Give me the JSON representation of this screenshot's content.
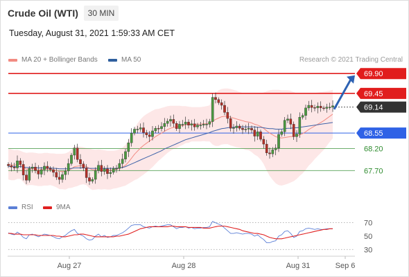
{
  "header": {
    "instrument": "Crude Oil (WTI)",
    "timeframe": "30 MIN",
    "timestamp": "Tuesday, August 31, 2021 1:59:33 AM CET"
  },
  "legend": {
    "ma20": {
      "label": "MA 20 + Bollinger Bands",
      "color": "#f28b82"
    },
    "ma50": {
      "label": "MA 50",
      "color": "#2f5f9e"
    },
    "copyright": "Research © 2021 Trading Central",
    "rsi": {
      "label": "RSI",
      "color": "#5b7fd6"
    },
    "ma9": {
      "label": "9MA",
      "color": "#e02020"
    }
  },
  "chart_data": {
    "type": "candlestick",
    "price_axis": {
      "ylim": [
        67.14,
        70.06
      ]
    },
    "x_axis_labels": [
      "Aug 27",
      "Aug 28",
      "Aug 31",
      "Sep 6"
    ],
    "levels": [
      {
        "label": "69.90",
        "value": 69.9,
        "kind": "resistance",
        "color": "#e11d1d"
      },
      {
        "label": "69.45",
        "value": 69.45,
        "kind": "resistance",
        "color": "#e11d1d"
      },
      {
        "label": "69.14",
        "value": 69.14,
        "kind": "last",
        "color": "#333333"
      },
      {
        "label": "68.55",
        "value": 68.55,
        "kind": "pivot",
        "color": "#2f62e6"
      },
      {
        "label": "68.20",
        "value": 68.2,
        "kind": "support",
        "color": "#2e8b2e"
      },
      {
        "label": "67.70",
        "value": 67.7,
        "kind": "support",
        "color": "#2e8b2e"
      }
    ],
    "forecast_arrow": {
      "from": 69.09,
      "to": 69.86,
      "color": "#2d62b3"
    },
    "closes": [
      67.81,
      67.78,
      67.76,
      67.92,
      67.84,
      67.6,
      67.48,
      67.75,
      67.78,
      67.7,
      67.62,
      67.72,
      67.8,
      67.75,
      67.72,
      67.66,
      67.55,
      67.5,
      67.61,
      67.69,
      67.86,
      68.05,
      68.21,
      67.95,
      67.85,
      67.76,
      67.54,
      67.46,
      67.5,
      67.7,
      67.82,
      67.68,
      67.74,
      67.63,
      67.66,
      67.75,
      67.75,
      67.86,
      67.96,
      68.13,
      68.33,
      68.55,
      68.64,
      68.64,
      68.67,
      68.56,
      68.51,
      68.47,
      68.6,
      68.66,
      68.65,
      68.7,
      68.77,
      68.82,
      68.86,
      68.77,
      68.65,
      68.75,
      68.75,
      68.8,
      68.73,
      68.76,
      68.69,
      68.73,
      68.73,
      68.75,
      68.75,
      68.81,
      69.36,
      69.31,
      69.24,
      69.18,
      69.02,
      68.88,
      68.66,
      68.67,
      68.71,
      68.66,
      68.63,
      68.64,
      68.66,
      68.62,
      68.48,
      68.58,
      68.41,
      68.3,
      68.1,
      68.08,
      68.17,
      68.21,
      68.52,
      68.58,
      68.84,
      68.87,
      68.75,
      68.47,
      68.53,
      68.91,
      68.95,
      69.12,
      69.18,
      69.13,
      69.12,
      69.16,
      69.12,
      69.11,
      69.14,
      69.14,
      69.17
    ],
    "ma20": [
      67.85,
      67.83,
      67.82,
      67.84,
      67.83,
      67.78,
      67.73,
      67.74,
      67.74,
      67.73,
      67.72,
      67.72,
      67.73,
      67.73,
      67.73,
      67.72,
      67.7,
      67.68,
      67.68,
      67.68,
      67.71,
      67.74,
      67.79,
      67.8,
      67.81,
      67.81,
      67.79,
      67.75,
      67.72,
      67.72,
      67.73,
      67.72,
      67.72,
      67.71,
      67.71,
      67.72,
      67.73,
      67.75,
      67.78,
      67.82,
      67.89,
      67.98,
      68.07,
      68.14,
      68.21,
      68.27,
      68.32,
      68.37,
      68.42,
      68.47,
      68.51,
      68.55,
      68.59,
      68.63,
      68.66,
      68.68,
      68.69,
      68.71,
      68.72,
      68.74,
      68.74,
      68.75,
      68.75,
      68.75,
      68.75,
      68.76,
      68.76,
      68.77,
      68.82,
      68.86,
      68.89,
      68.92,
      68.93,
      68.93,
      68.91,
      68.89,
      68.87,
      68.85,
      68.83,
      68.81,
      68.8,
      68.78,
      68.75,
      68.73,
      68.7,
      68.66,
      68.6,
      68.55,
      68.51,
      68.47,
      68.45,
      68.44,
      68.45,
      68.46,
      68.47,
      68.47,
      68.48,
      68.51,
      68.54,
      68.58,
      68.63,
      68.67,
      68.71,
      68.75,
      68.79,
      68.83,
      68.88,
      68.93,
      68.98
    ],
    "ma50": [
      67.8,
      67.79,
      67.79,
      67.79,
      67.79,
      67.78,
      67.77,
      67.77,
      67.77,
      67.77,
      67.76,
      67.76,
      67.76,
      67.76,
      67.76,
      67.75,
      67.75,
      67.74,
      67.74,
      67.74,
      67.74,
      67.75,
      67.76,
      67.76,
      67.76,
      67.76,
      67.76,
      67.75,
      67.75,
      67.75,
      67.75,
      67.75,
      67.75,
      67.75,
      67.75,
      67.75,
      67.75,
      67.76,
      67.77,
      67.79,
      67.82,
      67.85,
      67.88,
      67.91,
      67.94,
      67.97,
      68.0,
      68.03,
      68.06,
      68.09,
      68.12,
      68.15,
      68.19,
      68.22,
      68.25,
      68.28,
      68.31,
      68.34,
      68.37,
      68.4,
      68.42,
      68.44,
      68.46,
      68.48,
      68.5,
      68.52,
      68.54,
      68.56,
      68.59,
      68.61,
      68.63,
      68.65,
      68.66,
      68.67,
      68.68,
      68.68,
      68.69,
      68.69,
      68.69,
      68.69,
      68.69,
      68.69,
      68.69,
      68.68,
      68.68,
      68.67,
      68.66,
      68.65,
      68.65,
      68.64,
      68.64,
      68.64,
      68.65,
      68.66,
      68.66,
      68.67,
      68.67,
      68.68,
      68.69,
      68.7,
      68.71,
      68.72,
      68.73,
      68.74,
      68.75,
      68.76,
      68.77,
      68.78,
      68.79
    ],
    "bollinger_upper": [
      68.2,
      68.18,
      68.16,
      68.17,
      68.15,
      68.12,
      68.1,
      68.11,
      68.11,
      68.1,
      68.09,
      68.09,
      68.1,
      68.1,
      68.09,
      68.09,
      68.08,
      68.08,
      68.08,
      68.09,
      68.12,
      68.17,
      68.25,
      68.25,
      68.24,
      68.23,
      68.21,
      68.2,
      68.18,
      68.17,
      68.18,
      68.17,
      68.16,
      68.15,
      68.15,
      68.15,
      68.16,
      68.18,
      68.22,
      68.28,
      68.38,
      68.52,
      68.66,
      68.77,
      68.86,
      68.93,
      68.98,
      69.02,
      69.06,
      69.09,
      69.1,
      69.12,
      69.14,
      69.16,
      69.17,
      69.17,
      69.17,
      69.17,
      69.16,
      69.16,
      69.15,
      69.14,
      69.14,
      69.14,
      69.14,
      69.15,
      69.16,
      69.18,
      69.35,
      69.46,
      69.52,
      69.55,
      69.56,
      69.56,
      69.55,
      69.53,
      69.51,
      69.48,
      69.46,
      69.45,
      69.44,
      69.44,
      69.44,
      69.44,
      69.45,
      69.47,
      69.5,
      69.52,
      69.53,
      69.53,
      69.53,
      69.52,
      69.52,
      69.52,
      69.51,
      69.48,
      69.45,
      69.44,
      69.44,
      69.44,
      69.45,
      69.46,
      69.46,
      69.47,
      69.48,
      69.49,
      69.5,
      69.51,
      69.53
    ],
    "bollinger_lower": [
      67.5,
      67.48,
      67.48,
      67.51,
      67.51,
      67.44,
      67.36,
      67.37,
      67.37,
      67.36,
      67.35,
      67.35,
      67.36,
      67.36,
      67.37,
      67.35,
      67.32,
      67.28,
      67.28,
      67.27,
      67.3,
      67.31,
      67.33,
      67.35,
      67.38,
      67.39,
      67.37,
      67.3,
      67.26,
      67.27,
      67.28,
      67.27,
      67.28,
      67.27,
      67.27,
      67.29,
      67.3,
      67.32,
      67.34,
      67.36,
      67.4,
      67.44,
      67.48,
      67.51,
      67.56,
      67.61,
      67.66,
      67.72,
      67.78,
      67.85,
      67.92,
      67.98,
      68.04,
      68.1,
      68.15,
      68.19,
      68.21,
      68.25,
      68.28,
      68.32,
      68.33,
      68.36,
      68.36,
      68.36,
      68.36,
      68.37,
      68.36,
      68.36,
      68.29,
      68.26,
      68.26,
      68.29,
      68.3,
      68.3,
      68.27,
      68.25,
      68.23,
      68.22,
      68.2,
      68.17,
      68.16,
      68.12,
      68.06,
      68.02,
      67.95,
      67.85,
      67.7,
      67.58,
      67.49,
      67.41,
      67.37,
      67.36,
      67.38,
      67.4,
      67.43,
      67.46,
      67.51,
      67.58,
      67.64,
      67.72,
      67.81,
      67.88,
      67.96,
      68.03,
      68.1,
      68.17,
      68.26,
      68.35,
      68.43
    ],
    "rsi": {
      "axis_ticks": [
        70,
        50,
        30
      ],
      "ylim": [
        22,
        80
      ],
      "values": [
        55,
        53,
        52,
        56,
        53,
        48,
        46,
        52,
        53,
        51,
        49,
        51,
        53,
        52,
        51,
        49,
        47,
        46,
        49,
        51,
        55,
        58,
        60,
        54,
        52,
        50,
        46,
        44,
        45,
        50,
        53,
        49,
        51,
        48,
        49,
        51,
        51,
        53,
        55,
        58,
        62,
        66,
        67,
        67,
        67,
        64,
        63,
        62,
        64,
        65,
        64,
        65,
        66,
        67,
        67,
        64,
        61,
        63,
        63,
        64,
        62,
        63,
        61,
        62,
        62,
        63,
        63,
        64,
        72,
        70,
        68,
        66,
        62,
        58,
        54,
        54,
        55,
        54,
        53,
        54,
        54,
        53,
        50,
        52,
        48,
        45,
        40,
        40,
        42,
        43,
        50,
        52,
        57,
        58,
        54,
        48,
        50,
        57,
        58,
        61,
        62,
        61,
        60,
        61,
        60,
        60,
        61,
        61,
        61
      ],
      "ma9": [
        54,
        54,
        53,
        53,
        53,
        52,
        52,
        52,
        52,
        52,
        51,
        51,
        51,
        51,
        51,
        51,
        50,
        50,
        49,
        49,
        50,
        51,
        52,
        52,
        53,
        53,
        52,
        51,
        50,
        49,
        49,
        49,
        49,
        49,
        49,
        49,
        50,
        50,
        51,
        52,
        53,
        55,
        57,
        59,
        61,
        62,
        63,
        64,
        64,
        64,
        64,
        64,
        64,
        64,
        65,
        65,
        64,
        64,
        64,
        64,
        63,
        63,
        63,
        63,
        63,
        62,
        62,
        62,
        63,
        64,
        65,
        65,
        65,
        64,
        63,
        62,
        61,
        60,
        58,
        57,
        56,
        55,
        54,
        54,
        53,
        52,
        50,
        48,
        47,
        46,
        46,
        46,
        47,
        48,
        49,
        50,
        51,
        52,
        53,
        54,
        55,
        56,
        57,
        58,
        59,
        60,
        60,
        61,
        61
      ]
    }
  }
}
